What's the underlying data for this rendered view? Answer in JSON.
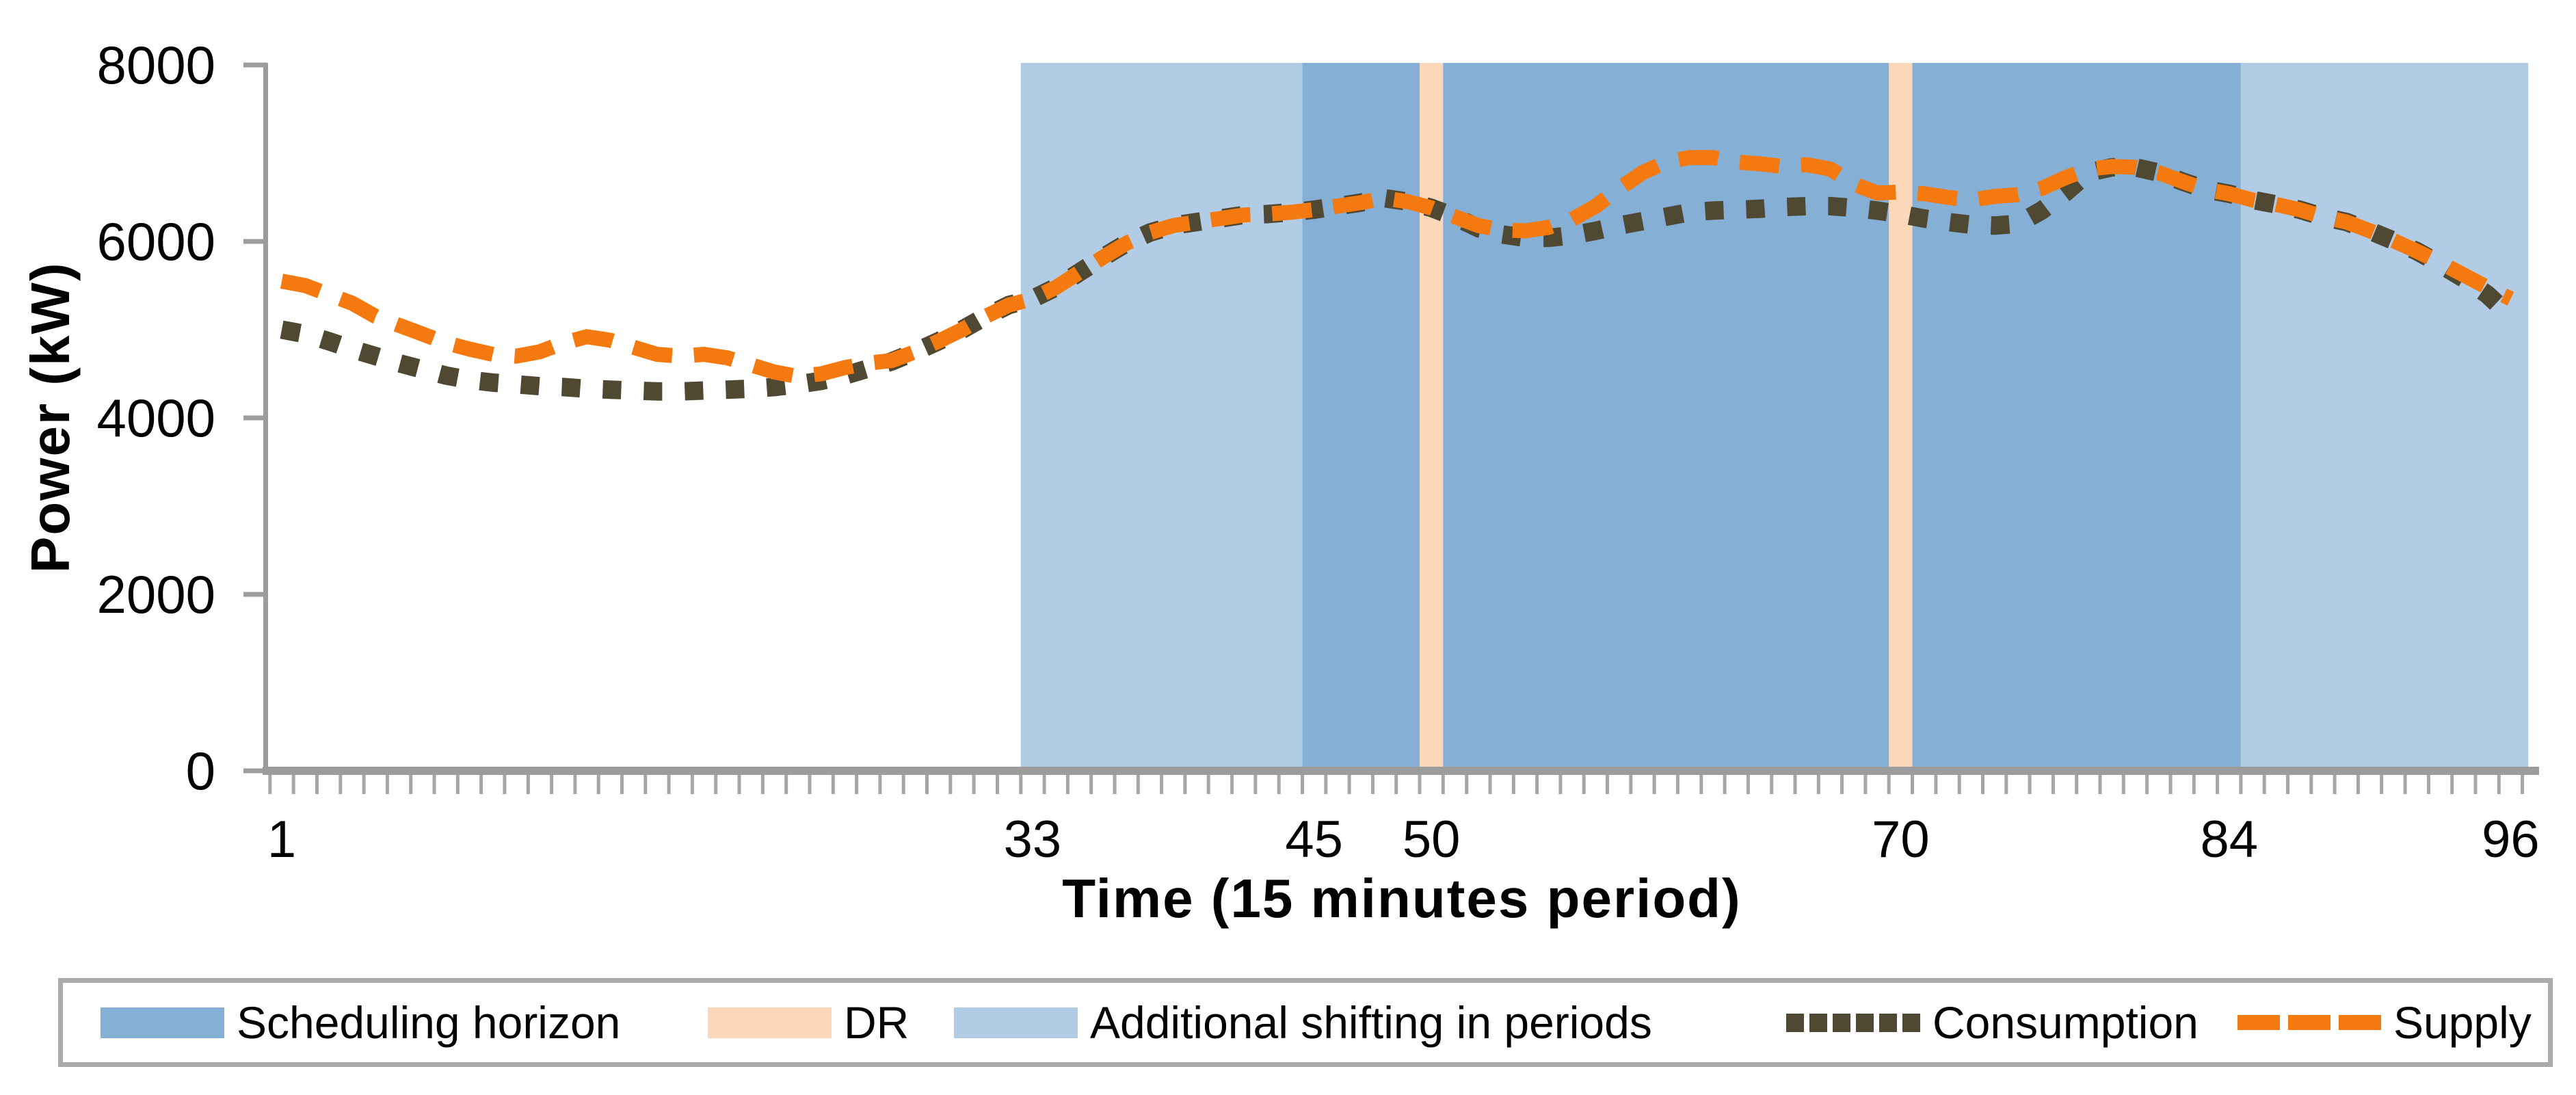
{
  "chart": {
    "colors": {
      "axis_gray": "#9c9c9c",
      "tick_gray": "#a6a6a6",
      "legend_border": "#ababab",
      "background": "#ffffff"
    }
  },
  "chart_data": {
    "type": "line",
    "title": "",
    "xlabel": "Time (15 minutes period)",
    "ylabel": "Power (kW)",
    "ylim": [
      0,
      8000
    ],
    "y_ticks": [
      {
        "value": 0,
        "label": "0"
      },
      {
        "value": 2000,
        "label": "2000"
      },
      {
        "value": 4000,
        "label": "4000"
      },
      {
        "value": 6000,
        "label": "6000"
      },
      {
        "value": 8000,
        "label": "8000"
      }
    ],
    "x_ticks": [
      {
        "t": 1,
        "label": "1"
      },
      {
        "t": 33,
        "label": "33"
      },
      {
        "t": 45,
        "label": "45"
      },
      {
        "t": 50,
        "label": "50"
      },
      {
        "t": 70,
        "label": "70"
      },
      {
        "t": 84,
        "label": "84"
      },
      {
        "t": 96,
        "label": "96"
      }
    ],
    "x_periods": 96,
    "x": [
      1,
      2,
      3,
      4,
      5,
      6,
      7,
      8,
      9,
      10,
      11,
      12,
      13,
      14,
      15,
      16,
      17,
      18,
      19,
      20,
      21,
      22,
      23,
      24,
      25,
      26,
      27,
      28,
      29,
      30,
      31,
      32,
      33,
      34,
      35,
      36,
      37,
      38,
      39,
      40,
      41,
      42,
      43,
      44,
      45,
      46,
      47,
      48,
      49,
      50,
      51,
      52,
      53,
      54,
      55,
      56,
      57,
      58,
      59,
      60,
      61,
      62,
      63,
      64,
      65,
      66,
      67,
      68,
      69,
      70,
      71,
      72,
      73,
      74,
      75,
      76,
      77,
      78,
      79,
      80,
      81,
      82,
      83,
      84,
      85,
      86,
      87,
      88,
      89,
      90,
      91,
      92,
      93,
      94,
      95,
      96
    ],
    "series": [
      {
        "name": "Consumption",
        "style": "dotted",
        "color": "#4f4832",
        "values": [
          5000,
          4950,
          4870,
          4780,
          4700,
          4620,
          4550,
          4480,
          4430,
          4400,
          4380,
          4360,
          4350,
          4330,
          4320,
          4310,
          4300,
          4300,
          4310,
          4320,
          4330,
          4350,
          4380,
          4420,
          4480,
          4560,
          4640,
          4750,
          4870,
          5000,
          5150,
          5280,
          5350,
          5480,
          5650,
          5820,
          5980,
          6100,
          6180,
          6220,
          6260,
          6300,
          6310,
          6330,
          6360,
          6400,
          6440,
          6490,
          6450,
          6380,
          6280,
          6150,
          6080,
          6040,
          6040,
          6070,
          6120,
          6180,
          6230,
          6280,
          6330,
          6350,
          6360,
          6370,
          6390,
          6400,
          6400,
          6380,
          6350,
          6310,
          6260,
          6220,
          6190,
          6180,
          6200,
          6350,
          6550,
          6780,
          6840,
          6840,
          6780,
          6680,
          6590,
          6540,
          6470,
          6420,
          6360,
          6280,
          6220,
          6120,
          6010,
          5890,
          5740,
          5580,
          5400,
          5150
        ]
      },
      {
        "name": "Supply",
        "style": "dashed",
        "color": "#f4790f",
        "values": [
          5550,
          5500,
          5400,
          5300,
          5150,
          5050,
          4950,
          4850,
          4780,
          4720,
          4700,
          4750,
          4850,
          4920,
          4880,
          4800,
          4720,
          4700,
          4720,
          4680,
          4600,
          4520,
          4470,
          4500,
          4570,
          4620,
          4650,
          4750,
          4870,
          5000,
          5150,
          5280,
          5350,
          5480,
          5650,
          5820,
          5980,
          6100,
          6180,
          6220,
          6260,
          6300,
          6310,
          6330,
          6360,
          6400,
          6440,
          6490,
          6450,
          6380,
          6280,
          6180,
          6130,
          6120,
          6160,
          6250,
          6400,
          6600,
          6780,
          6900,
          6950,
          6950,
          6900,
          6880,
          6850,
          6870,
          6820,
          6650,
          6550,
          6560,
          6540,
          6500,
          6470,
          6510,
          6530,
          6600,
          6720,
          6820,
          6850,
          6840,
          6780,
          6680,
          6590,
          6540,
          6470,
          6420,
          6360,
          6280,
          6220,
          6120,
          6010,
          5890,
          5760,
          5620,
          5480,
          5350
        ]
      }
    ],
    "regions": [
      {
        "label": "Additional shifting in periods",
        "from": 32.5,
        "to": 44.5,
        "color": "#b3cce6"
      },
      {
        "label": "Scheduling horizon",
        "from": 44.5,
        "to": 84.5,
        "color": "#86afd6"
      },
      {
        "label": "Additional shifting in periods",
        "from": 84.5,
        "to": 96.75,
        "color": "#b3cce6"
      },
      {
        "label": "DR",
        "from": 49.5,
        "to": 50.5,
        "color": "#fbd8ba"
      },
      {
        "label": "DR",
        "from": 69.5,
        "to": 70.5,
        "color": "#fbd8ba"
      }
    ],
    "legend_entries": [
      {
        "label": "Scheduling horizon",
        "swatch": "area",
        "color": "#86afd6"
      },
      {
        "label": "DR",
        "swatch": "area",
        "color": "#fbd8ba"
      },
      {
        "label": "Additional shifting in periods",
        "swatch": "area",
        "color": "#b3cce6"
      },
      {
        "label": "Consumption",
        "swatch": "dotted-line",
        "color": "#4f4832"
      },
      {
        "label": "Supply",
        "swatch": "dashed-line",
        "color": "#f4790f"
      }
    ],
    "legend_position": "bottom",
    "grid": false
  }
}
